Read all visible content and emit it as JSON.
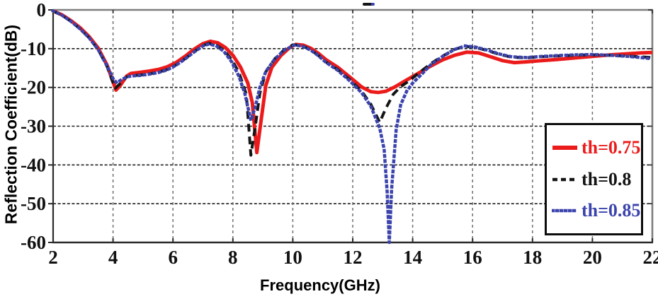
{
  "figure": {
    "background": "#ffffff",
    "top_artifact": {
      "desc": "small stray dash mark above top frame",
      "colors": [
        "#141414",
        "#3b43ad"
      ]
    }
  },
  "chart_data": {
    "type": "line",
    "title": "",
    "xlabel": "Frequency(GHz)",
    "ylabel": "Reflection Coefficient(dB)",
    "xlim": [
      2,
      22
    ],
    "ylim": [
      -60,
      0
    ],
    "xticks": [
      2,
      4,
      6,
      8,
      10,
      12,
      14,
      16,
      18,
      20,
      22
    ],
    "yticks": [
      0,
      -10,
      -20,
      -30,
      -40,
      -50,
      -60
    ],
    "grid": true,
    "legend_position": "lower right",
    "axis_colors": {
      "frame_top_right": "#7e7e7e",
      "frame_left_bottom": "#2a2a2a",
      "grid_h": "#1f1f1f",
      "grid_v": "#6e6e6e",
      "tick_label": "#111111"
    },
    "series": [
      {
        "name": "th=0.75",
        "color": "#ec1b1b",
        "style": "solid",
        "width": 5,
        "points": [
          [
            2,
            -0.3
          ],
          [
            2.3,
            -1.3
          ],
          [
            2.6,
            -2.8
          ],
          [
            2.9,
            -4.6
          ],
          [
            3.2,
            -6.9
          ],
          [
            3.5,
            -9.8
          ],
          [
            3.8,
            -14.2
          ],
          [
            4.0,
            -18.6
          ],
          [
            4.1,
            -20.7
          ],
          [
            4.25,
            -19.4
          ],
          [
            4.45,
            -17.1
          ],
          [
            4.6,
            -16.4
          ],
          [
            4.9,
            -16.1
          ],
          [
            5.2,
            -15.8
          ],
          [
            5.5,
            -15.4
          ],
          [
            5.8,
            -14.7
          ],
          [
            6.1,
            -13.6
          ],
          [
            6.4,
            -12.0
          ],
          [
            6.7,
            -10.2
          ],
          [
            7.0,
            -8.7
          ],
          [
            7.25,
            -8.1
          ],
          [
            7.5,
            -8.5
          ],
          [
            7.75,
            -9.7
          ],
          [
            8.0,
            -11.7
          ],
          [
            8.25,
            -14.7
          ],
          [
            8.5,
            -18.9
          ],
          [
            8.65,
            -24.0
          ],
          [
            8.8,
            -36.8
          ],
          [
            8.95,
            -28.0
          ],
          [
            9.1,
            -19.5
          ],
          [
            9.3,
            -14.8
          ],
          [
            9.6,
            -11.8
          ],
          [
            9.9,
            -9.7
          ],
          [
            10.1,
            -8.9
          ],
          [
            10.35,
            -9.1
          ],
          [
            10.6,
            -9.9
          ],
          [
            10.85,
            -11.2
          ],
          [
            11.1,
            -12.8
          ],
          [
            11.5,
            -14.8
          ],
          [
            11.9,
            -17.3
          ],
          [
            12.3,
            -19.9
          ],
          [
            12.6,
            -21.1
          ],
          [
            12.85,
            -21.3
          ],
          [
            13.1,
            -21.0
          ],
          [
            13.4,
            -19.9
          ],
          [
            13.8,
            -18.1
          ],
          [
            14.2,
            -16.3
          ],
          [
            14.6,
            -14.5
          ],
          [
            15.0,
            -12.9
          ],
          [
            15.4,
            -11.7
          ],
          [
            15.8,
            -10.9
          ],
          [
            16.2,
            -11.1
          ],
          [
            16.6,
            -12.1
          ],
          [
            17.0,
            -13.1
          ],
          [
            17.4,
            -13.6
          ],
          [
            17.8,
            -13.4
          ],
          [
            18.3,
            -13.1
          ],
          [
            18.8,
            -12.8
          ],
          [
            19.4,
            -12.4
          ],
          [
            20.0,
            -12.0
          ],
          [
            20.6,
            -11.6
          ],
          [
            21.2,
            -11.3
          ],
          [
            21.6,
            -11.1
          ],
          [
            22,
            -11.0
          ]
        ]
      },
      {
        "name": "th=0.8",
        "color": "#141414",
        "style": "dashed",
        "width": 4,
        "points": [
          [
            2,
            -0.3
          ],
          [
            2.3,
            -1.4
          ],
          [
            2.6,
            -3.0
          ],
          [
            2.9,
            -4.9
          ],
          [
            3.2,
            -7.2
          ],
          [
            3.5,
            -10.2
          ],
          [
            3.8,
            -14.6
          ],
          [
            4.0,
            -18.8
          ],
          [
            4.08,
            -20.2
          ],
          [
            4.25,
            -18.9
          ],
          [
            4.45,
            -17.3
          ],
          [
            4.6,
            -17.0
          ],
          [
            4.9,
            -16.8
          ],
          [
            5.2,
            -16.5
          ],
          [
            5.5,
            -16.1
          ],
          [
            5.8,
            -15.4
          ],
          [
            6.1,
            -14.2
          ],
          [
            6.4,
            -12.6
          ],
          [
            6.7,
            -10.8
          ],
          [
            7.0,
            -9.2
          ],
          [
            7.2,
            -8.6
          ],
          [
            7.45,
            -9.1
          ],
          [
            7.7,
            -10.4
          ],
          [
            7.95,
            -12.7
          ],
          [
            8.2,
            -16.1
          ],
          [
            8.45,
            -21.8
          ],
          [
            8.6,
            -37.5
          ],
          [
            8.75,
            -30.0
          ],
          [
            8.9,
            -21.5
          ],
          [
            9.1,
            -16.0
          ],
          [
            9.4,
            -12.6
          ],
          [
            9.7,
            -10.4
          ],
          [
            10.0,
            -9.0
          ],
          [
            10.3,
            -9.2
          ],
          [
            10.6,
            -10.3
          ],
          [
            10.85,
            -11.7
          ],
          [
            11.1,
            -13.4
          ],
          [
            11.5,
            -15.4
          ],
          [
            11.9,
            -18.0
          ],
          [
            12.3,
            -21.0
          ],
          [
            12.6,
            -24.3
          ],
          [
            12.9,
            -29.0
          ],
          [
            13.1,
            -25.5
          ],
          [
            13.35,
            -21.8
          ],
          [
            13.6,
            -19.8
          ],
          [
            13.9,
            -18.2
          ],
          [
            14.2,
            -16.3
          ],
          [
            14.6,
            -13.9
          ],
          [
            15.0,
            -11.9
          ],
          [
            15.4,
            -10.2
          ],
          [
            15.75,
            -9.4
          ],
          [
            16.1,
            -9.7
          ],
          [
            16.5,
            -10.5
          ],
          [
            16.9,
            -11.5
          ],
          [
            17.3,
            -12.2
          ],
          [
            17.8,
            -12.4
          ],
          [
            18.3,
            -12.1
          ],
          [
            18.8,
            -11.9
          ],
          [
            19.4,
            -11.7
          ],
          [
            20.0,
            -11.6
          ],
          [
            20.6,
            -11.7
          ],
          [
            21.2,
            -11.9
          ],
          [
            21.6,
            -12.1
          ],
          [
            22,
            -12.3
          ]
        ]
      },
      {
        "name": "th=0.85",
        "color": "#3b43ad",
        "style": "dotted",
        "width": 4.5,
        "points": [
          [
            2,
            -0.3
          ],
          [
            2.3,
            -1.4
          ],
          [
            2.6,
            -3.0
          ],
          [
            2.9,
            -4.9
          ],
          [
            3.2,
            -7.2
          ],
          [
            3.5,
            -10.2
          ],
          [
            3.8,
            -14.4
          ],
          [
            4.0,
            -17.7
          ],
          [
            4.12,
            -18.8
          ],
          [
            4.3,
            -17.9
          ],
          [
            4.5,
            -17.2
          ],
          [
            4.7,
            -17.0
          ],
          [
            4.9,
            -16.9
          ],
          [
            5.2,
            -16.6
          ],
          [
            5.5,
            -16.2
          ],
          [
            5.8,
            -15.5
          ],
          [
            6.1,
            -14.3
          ],
          [
            6.4,
            -12.7
          ],
          [
            6.7,
            -10.9
          ],
          [
            7.0,
            -9.3
          ],
          [
            7.2,
            -8.8
          ],
          [
            7.45,
            -9.3
          ],
          [
            7.7,
            -10.7
          ],
          [
            7.95,
            -13.3
          ],
          [
            8.2,
            -17.1
          ],
          [
            8.4,
            -21.6
          ],
          [
            8.6,
            -28.5
          ],
          [
            8.75,
            -25.0
          ],
          [
            8.9,
            -20.0
          ],
          [
            9.1,
            -15.9
          ],
          [
            9.4,
            -12.7
          ],
          [
            9.7,
            -10.5
          ],
          [
            10.05,
            -9.1
          ],
          [
            10.3,
            -9.3
          ],
          [
            10.6,
            -10.4
          ],
          [
            10.85,
            -11.8
          ],
          [
            11.1,
            -13.5
          ],
          [
            11.5,
            -15.6
          ],
          [
            11.9,
            -18.3
          ],
          [
            12.3,
            -21.4
          ],
          [
            12.6,
            -24.8
          ],
          [
            12.9,
            -30.5
          ],
          [
            13.05,
            -36.0
          ],
          [
            13.15,
            -47.0
          ],
          [
            13.22,
            -60.0
          ],
          [
            13.3,
            -46.0
          ],
          [
            13.45,
            -31.0
          ],
          [
            13.6,
            -24.5
          ],
          [
            13.8,
            -21.0
          ],
          [
            14.0,
            -18.9
          ],
          [
            14.3,
            -16.6
          ],
          [
            14.6,
            -14.2
          ],
          [
            15.0,
            -12.0
          ],
          [
            15.4,
            -10.2
          ],
          [
            15.75,
            -9.3
          ],
          [
            16.1,
            -9.6
          ],
          [
            16.5,
            -10.4
          ],
          [
            16.9,
            -11.4
          ],
          [
            17.3,
            -12.1
          ],
          [
            17.8,
            -12.3
          ],
          [
            18.3,
            -12.0
          ],
          [
            18.8,
            -11.8
          ],
          [
            19.4,
            -11.6
          ],
          [
            20.0,
            -11.5
          ],
          [
            20.6,
            -11.7
          ],
          [
            21.2,
            -12.0
          ],
          [
            21.6,
            -12.3
          ],
          [
            22,
            -12.6
          ]
        ]
      }
    ]
  }
}
